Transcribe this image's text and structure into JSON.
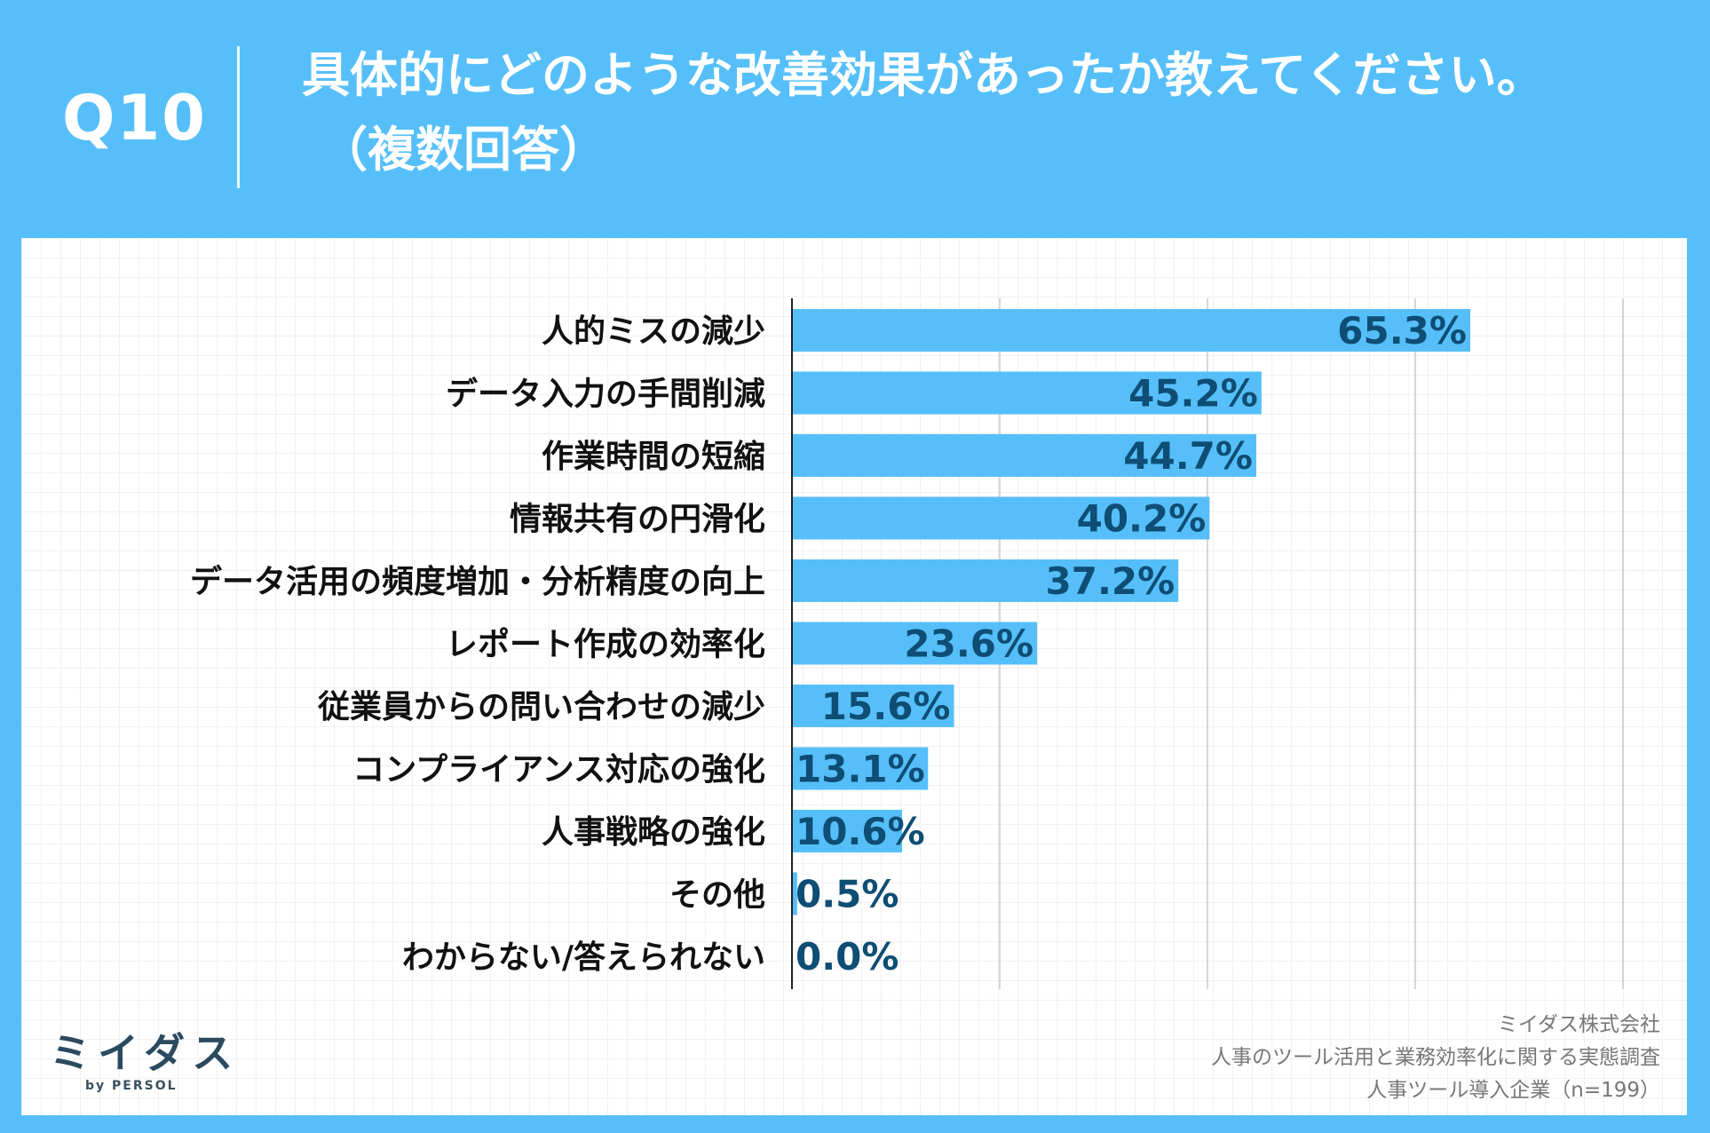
{
  "header": {
    "question_number": "Q10",
    "title": "具体的にどのような改善効果があったか教えてください。",
    "subtitle": "（複数回答）"
  },
  "colors": {
    "background": "#56bff9",
    "bar": "#56bff9",
    "value_text": "#0e4d74"
  },
  "chart_data": {
    "type": "bar",
    "orientation": "horizontal",
    "unit": "%",
    "xlim": [
      0,
      80
    ],
    "grid": true,
    "categories": [
      "人的ミスの減少",
      "データ入力の手間削減",
      "作業時間の短縮",
      "情報共有の円滑化",
      "データ活用の頻度増加・分析精度の向上",
      "レポート作成の効率化",
      "従業員からの問い合わせの減少",
      "コンプライアンス対応の強化",
      "人事戦略の強化",
      "その他",
      "わからない/答えられない"
    ],
    "values": [
      65.3,
      45.2,
      44.7,
      40.2,
      37.2,
      23.6,
      15.6,
      13.1,
      10.6,
      0.5,
      0.0
    ],
    "value_labels": [
      "65.3%",
      "45.2%",
      "44.7%",
      "40.2%",
      "37.2%",
      "23.6%",
      "15.6%",
      "13.1%",
      "10.6%",
      "0.5%",
      "0.0%"
    ]
  },
  "logo": {
    "name": "ミイダス",
    "sub": "by PERSOL"
  },
  "source": {
    "line1": "ミイダス株式会社",
    "line2": "人事のツール活用と業務効率化に関する実態調査",
    "line3": "人事ツール導入企業（n=199）"
  }
}
